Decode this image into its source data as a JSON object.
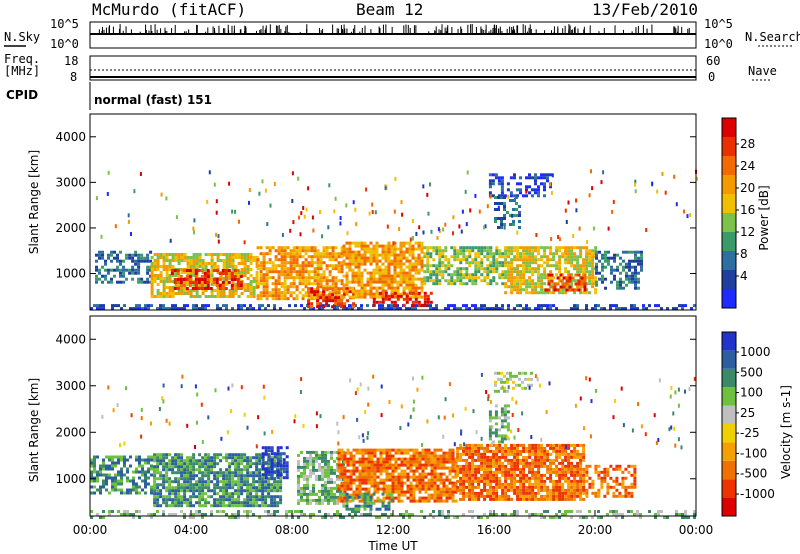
{
  "header": {
    "station": "McMurdo (fitACF)",
    "beam": "Beam 12",
    "date": "13/Feb/2010"
  },
  "top_panels": {
    "noise_left_label": "N.Sky",
    "noise_right_label": "N.Search",
    "noise_ticks": [
      "10^5",
      "10^0"
    ],
    "freq_label_1": "Freq.",
    "freq_label_2": "[MHz]",
    "freq_ticks": [
      "18",
      "8"
    ],
    "nave_label": "Nave",
    "nave_ticks": [
      "60",
      "0"
    ],
    "cpid_label": "CPID",
    "cpid_value": "normal (fast) 151"
  },
  "colors": {
    "power_scale": [
      "#1e2bff",
      "#1f3fa0",
      "#2c6fa0",
      "#3a9a6a",
      "#7cc24a",
      "#f0c000",
      "#f29a00",
      "#f26a00",
      "#e83000",
      "#dd0000"
    ],
    "velocity_scale": [
      "#2233cc",
      "#2c5fa0",
      "#3a8a6a",
      "#70c040",
      "#bfbfbf",
      "#f0d000",
      "#f5a000",
      "#f07000",
      "#ee3300",
      "#dd0000"
    ]
  },
  "chart_data": [
    {
      "type": "heatmap",
      "title": "",
      "xlabel": "Time UT",
      "ylabel": "Slant Range [km]",
      "x_ticks": [
        "00:00",
        "04:00",
        "08:00",
        "12:00",
        "16:00",
        "20:00",
        "00:00"
      ],
      "y_ticks": [
        1000,
        2000,
        3000,
        4000
      ],
      "ylim": [
        200,
        4500
      ],
      "xlim_hours": [
        0,
        24
      ],
      "colorbar_label": "Power [dB]",
      "colorbar_ticks": [
        4,
        8,
        12,
        16,
        20,
        24,
        28
      ],
      "bands": [
        {
          "t0": 0.0,
          "t1": 24.0,
          "r0": 200,
          "r1": 330,
          "level": 1,
          "density": 0.55
        },
        {
          "t0": 0.2,
          "t1": 2.4,
          "r0": 800,
          "r1": 1500,
          "level": 2,
          "density": 0.5
        },
        {
          "t0": 2.4,
          "t1": 6.6,
          "r0": 500,
          "r1": 1450,
          "level": 5,
          "density": 0.75
        },
        {
          "t0": 3.2,
          "t1": 6.0,
          "r0": 650,
          "r1": 1100,
          "level": 8,
          "density": 0.6
        },
        {
          "t0": 6.6,
          "t1": 10.0,
          "r0": 450,
          "r1": 1600,
          "level": 6,
          "density": 0.75
        },
        {
          "t0": 8.6,
          "t1": 10.5,
          "r0": 300,
          "r1": 700,
          "level": 8,
          "density": 0.55
        },
        {
          "t0": 10.0,
          "t1": 13.2,
          "r0": 450,
          "r1": 1700,
          "level": 6,
          "density": 0.75
        },
        {
          "t0": 11.2,
          "t1": 13.5,
          "r0": 300,
          "r1": 600,
          "level": 9,
          "density": 0.5
        },
        {
          "t0": 13.2,
          "t1": 16.4,
          "r0": 800,
          "r1": 1600,
          "level": 4,
          "density": 0.7
        },
        {
          "t0": 16.4,
          "t1": 20.0,
          "r0": 550,
          "r1": 1600,
          "level": 5,
          "density": 0.75
        },
        {
          "t0": 18.0,
          "t1": 19.6,
          "r0": 650,
          "r1": 1000,
          "level": 8,
          "density": 0.55
        },
        {
          "t0": 20.0,
          "t1": 21.8,
          "r0": 700,
          "r1": 1500,
          "level": 2,
          "density": 0.5
        },
        {
          "t0": 15.8,
          "t1": 18.2,
          "r0": 2700,
          "r1": 3200,
          "level": 1,
          "density": 0.45
        },
        {
          "t0": 16.0,
          "t1": 17.0,
          "r0": 2000,
          "r1": 2700,
          "level": 2,
          "density": 0.4
        }
      ]
    },
    {
      "type": "heatmap",
      "title": "",
      "xlabel": "Time UT",
      "ylabel": "Slant Range [km]",
      "x_ticks": [
        "00:00",
        "04:00",
        "08:00",
        "12:00",
        "16:00",
        "20:00",
        "00:00"
      ],
      "y_ticks": [
        1000,
        2000,
        3000,
        4000
      ],
      "ylim": [
        200,
        4500
      ],
      "xlim_hours": [
        0,
        24
      ],
      "colorbar_label": "Velocity [m s-1]",
      "colorbar_ticks": [
        1000,
        500,
        100,
        25,
        -25,
        -100,
        -500,
        -1000
      ],
      "bands": [
        {
          "t0": 0.0,
          "t1": 24.0,
          "r0": 200,
          "r1": 330,
          "level": 3,
          "density": 0.4
        },
        {
          "t0": 0.0,
          "t1": 2.5,
          "r0": 700,
          "r1": 1500,
          "level": 2,
          "density": 0.55
        },
        {
          "t0": 2.5,
          "t1": 7.5,
          "r0": 400,
          "r1": 1550,
          "level": 2,
          "density": 0.8
        },
        {
          "t0": 6.8,
          "t1": 7.8,
          "r0": 1000,
          "r1": 1700,
          "level": 0,
          "density": 0.6
        },
        {
          "t0": 8.2,
          "t1": 10.0,
          "r0": 500,
          "r1": 1600,
          "level": 3,
          "density": 0.7
        },
        {
          "t0": 9.8,
          "t1": 14.5,
          "r0": 500,
          "r1": 1650,
          "level": 7,
          "density": 0.8
        },
        {
          "t0": 10.0,
          "t1": 12.0,
          "r0": 350,
          "r1": 700,
          "level": 2,
          "density": 0.5
        },
        {
          "t0": 14.5,
          "t1": 19.5,
          "r0": 550,
          "r1": 1750,
          "level": 7,
          "density": 0.85
        },
        {
          "t0": 19.5,
          "t1": 21.6,
          "r0": 650,
          "r1": 1300,
          "level": 7,
          "density": 0.55
        },
        {
          "t0": 16.0,
          "t1": 17.5,
          "r0": 2900,
          "r1": 3300,
          "level": 4,
          "density": 0.4
        },
        {
          "t0": 15.8,
          "t1": 16.6,
          "r0": 1800,
          "r1": 2600,
          "level": 3,
          "density": 0.45
        }
      ]
    }
  ]
}
